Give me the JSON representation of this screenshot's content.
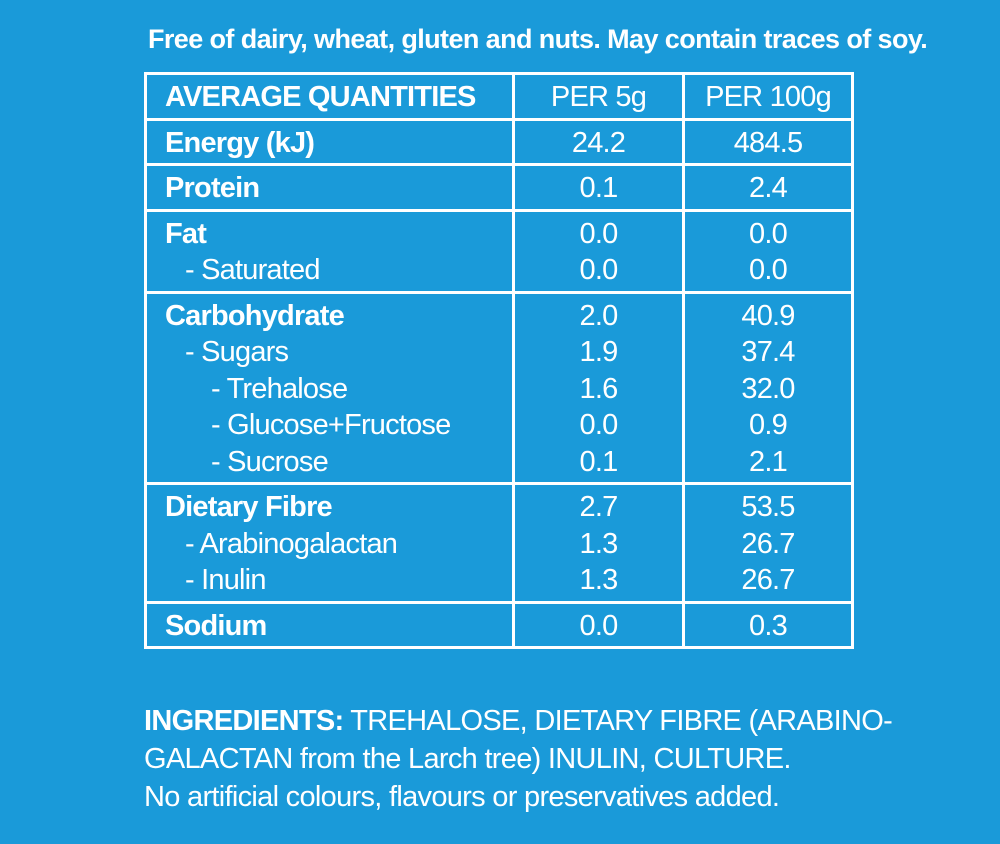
{
  "allergen_statement": "Free of dairy, wheat, gluten and nuts. May contain traces of soy.",
  "table": {
    "headers": {
      "label": "AVERAGE QUANTITIES",
      "per_serving": "PER 5g",
      "per_100g": "PER 100g"
    },
    "groups": [
      {
        "rows": [
          {
            "label": "Energy (kJ)",
            "level": 0,
            "per_serving": "24.2",
            "per_100g": "484.5"
          }
        ]
      },
      {
        "rows": [
          {
            "label": "Protein",
            "level": 0,
            "per_serving": "0.1",
            "per_100g": "2.4"
          }
        ]
      },
      {
        "rows": [
          {
            "label": "Fat",
            "level": 0,
            "per_serving": "0.0",
            "per_100g": "0.0"
          },
          {
            "label": "- Saturated",
            "level": 1,
            "per_serving": "0.0",
            "per_100g": "0.0"
          }
        ]
      },
      {
        "rows": [
          {
            "label": "Carbohydrate",
            "level": 0,
            "per_serving": "2.0",
            "per_100g": "40.9"
          },
          {
            "label": "- Sugars",
            "level": 1,
            "per_serving": "1.9",
            "per_100g": "37.4"
          },
          {
            "label": "- Trehalose",
            "level": 2,
            "per_serving": "1.6",
            "per_100g": "32.0"
          },
          {
            "label": "- Glucose+Fructose",
            "level": 2,
            "per_serving": "0.0",
            "per_100g": "0.9"
          },
          {
            "label": "- Sucrose",
            "level": 2,
            "per_serving": "0.1",
            "per_100g": "2.1"
          }
        ]
      },
      {
        "rows": [
          {
            "label": "Dietary Fibre",
            "level": 0,
            "per_serving": "2.7",
            "per_100g": "53.5"
          },
          {
            "label": "- Arabinogalactan",
            "level": 1,
            "per_serving": "1.3",
            "per_100g": "26.7"
          },
          {
            "label": "- Inulin",
            "level": 1,
            "per_serving": "1.3",
            "per_100g": "26.7"
          }
        ]
      },
      {
        "rows": [
          {
            "label": "Sodium",
            "level": 0,
            "per_serving": "0.0",
            "per_100g": "0.3"
          }
        ]
      }
    ]
  },
  "ingredients": {
    "heading": "INGREDIENTS:",
    "line1": " TREHALOSE, DIETARY FIBRE (ARABINO-",
    "line2": "GALACTAN from the Larch tree) INULIN, CULTURE.",
    "line3": "No artificial colours, flavours or preservatives added."
  },
  "colors": {
    "background": "#1a9ad9",
    "text": "#ffffff"
  }
}
